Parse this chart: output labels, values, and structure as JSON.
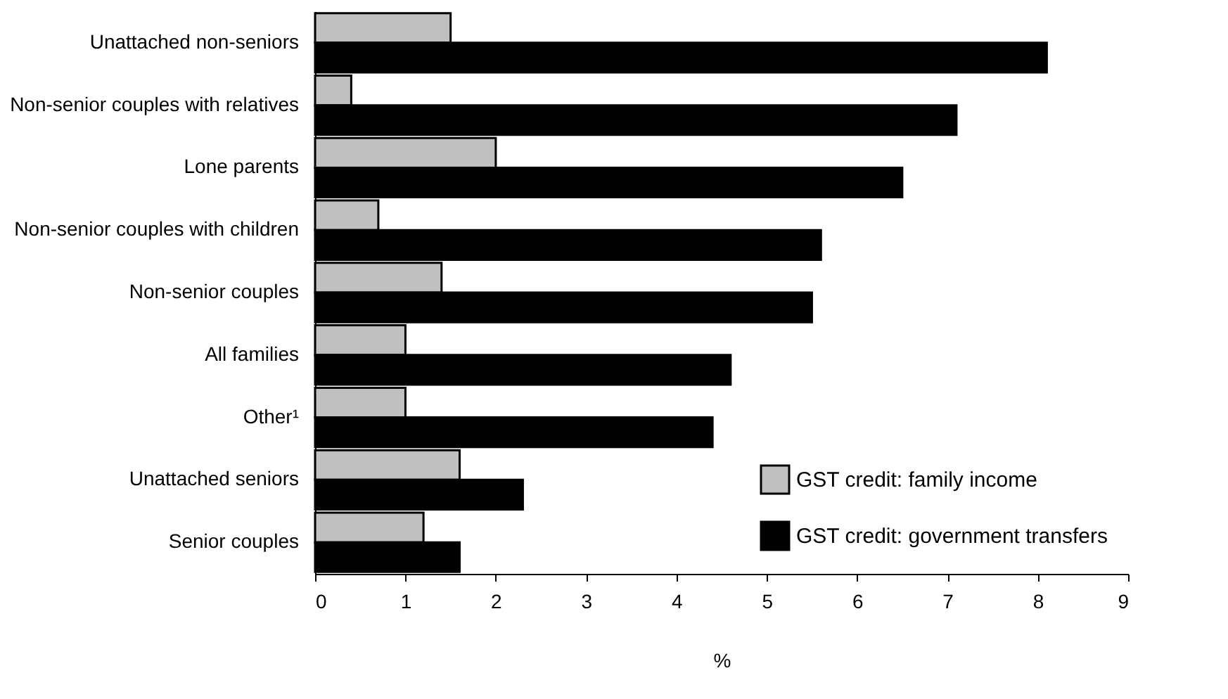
{
  "chart_data": {
    "type": "bar",
    "orientation": "horizontal",
    "xlabel": "%",
    "categories": [
      "Unattached non-seniors",
      "Non-senior couples with relatives",
      "Lone parents",
      "Non-senior couples with children",
      "Non-senior couples",
      "All families",
      "Other¹",
      "Unattached seniors",
      "Senior couples"
    ],
    "series": [
      {
        "name": "GST credit: family income",
        "color": "#c0c0c0",
        "values": [
          1.5,
          0.4,
          2.0,
          0.7,
          1.4,
          1.0,
          1.0,
          1.6,
          1.2
        ]
      },
      {
        "name": "GST credit: government transfers",
        "color": "#000000",
        "values": [
          8.1,
          7.1,
          6.5,
          5.6,
          5.5,
          4.6,
          4.4,
          2.3,
          1.6
        ]
      }
    ],
    "xlim": [
      0,
      9
    ],
    "xticks": [
      0,
      1,
      2,
      3,
      4,
      5,
      6,
      7,
      8,
      9
    ],
    "grid": false,
    "legend": "bottom right"
  }
}
